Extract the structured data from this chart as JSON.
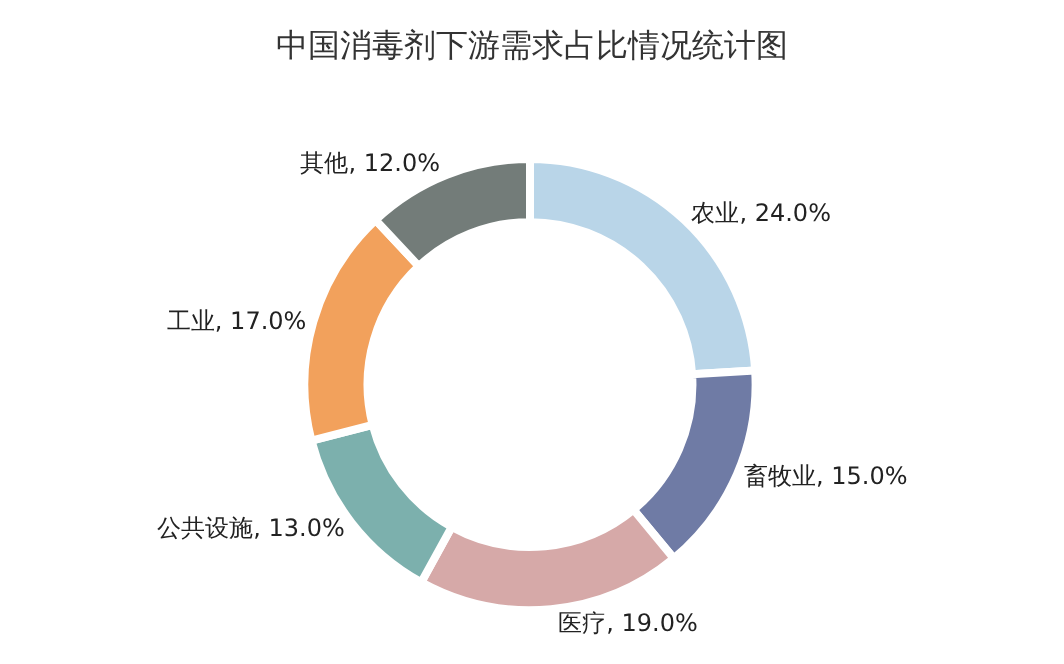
{
  "chart_data": {
    "type": "donut",
    "title": "中国消毒剂下游需求占比情况统计图",
    "categories": [
      "农业",
      "畜牧业",
      "医疗",
      "公共设施",
      "工业",
      "其他"
    ],
    "values": [
      24.0,
      15.0,
      19.0,
      13.0,
      17.0,
      12.0
    ],
    "colors": [
      "#b9d5e8",
      "#6f7ba5",
      "#d6a9a8",
      "#7cb0ad",
      "#f2a15c",
      "#737c79"
    ],
    "value_labels": [
      "24.0%",
      "15.0%",
      "19.0%",
      "13.0%",
      "17.0%",
      "12.0%"
    ],
    "legend": false
  }
}
